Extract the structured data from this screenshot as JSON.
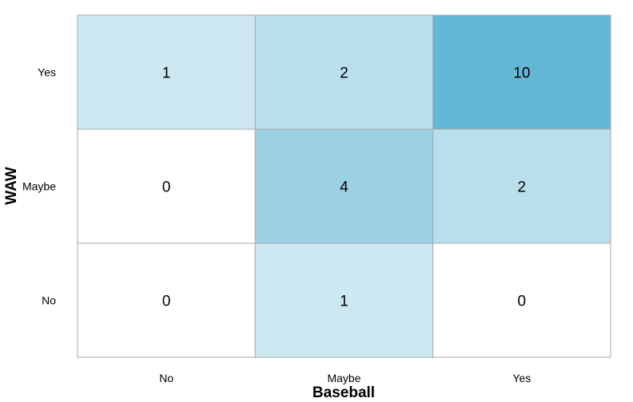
{
  "chart_data": {
    "type": "heatmap",
    "xlabel": "Baseball",
    "ylabel": "WAW",
    "x_categories": [
      "No",
      "Maybe",
      "Yes"
    ],
    "y_categories": [
      "No",
      "Maybe",
      "Yes"
    ],
    "values": [
      [
        0,
        1,
        0
      ],
      [
        0,
        4,
        2
      ],
      [
        1,
        2,
        10
      ]
    ],
    "color_low": "#ffffff",
    "color_high": "#62b7d4",
    "border_color": "#aaaaaa",
    "grid": false,
    "legend": "none"
  }
}
